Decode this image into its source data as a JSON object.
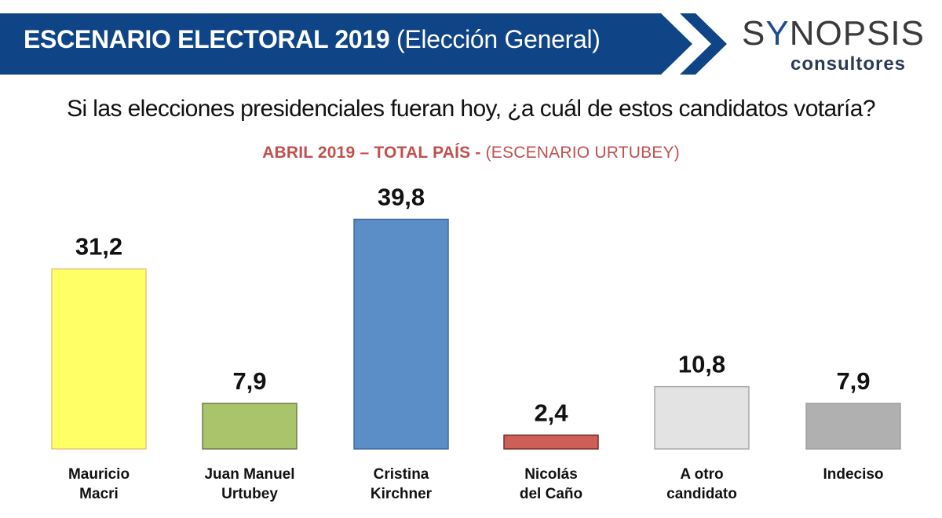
{
  "header": {
    "title_bold": "ESCENARIO ELECTORAL 2019",
    "title_regular": "(Elección General)",
    "banner_color": "#0f4586"
  },
  "logo": {
    "main_prefix": "S",
    "main_y": "Y",
    "main_suffix": "NOPSIS",
    "sub": "consultores"
  },
  "question": "Si las elecciones presidenciales fueran hoy, ¿a cuál de estos candidatos votaría?",
  "subtitle": {
    "bold": "ABRIL 2019 – TOTAL PAÍS -",
    "regular": "(ESCENARIO URTUBEY)",
    "color": "#c0504d"
  },
  "chart_data": {
    "type": "bar",
    "title": "ABRIL 2019 – TOTAL PAÍS - (ESCENARIO URTUBEY)",
    "xlabel": "",
    "ylabel": "",
    "ylim": [
      0,
      40
    ],
    "grid": false,
    "legend": "none",
    "categories": [
      [
        "Mauricio",
        "Macri"
      ],
      [
        "Juan Manuel",
        "Urtubey"
      ],
      [
        "Cristina",
        "Kirchner"
      ],
      [
        "Nicolás",
        "del Caño"
      ],
      [
        "A otro",
        "candidato"
      ],
      [
        "Indeciso"
      ]
    ],
    "values": [
      31.2,
      7.9,
      39.8,
      2.4,
      10.8,
      7.9
    ],
    "value_labels": [
      "31,2",
      "7,9",
      "39,8",
      "2,4",
      "10,8",
      "7,9"
    ],
    "colors": [
      "#ffff66",
      "#a9c46b",
      "#5b8ec7",
      "#cd5f58",
      "#e3e3e3",
      "#b0b0b0"
    ],
    "borders": [
      "#e8c87a",
      "#6f7f4a",
      "#3f6a9e",
      "#7a2f2a",
      "#a8a8a8",
      "#a0a0a0"
    ]
  }
}
